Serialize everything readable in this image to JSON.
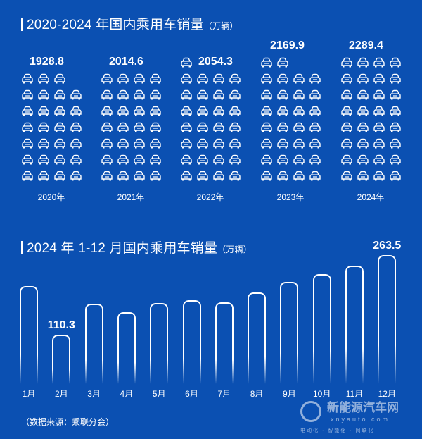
{
  "section1": {
    "title": "2020-2024 年国内乘用车销量",
    "unit": "（万辆）"
  },
  "section2": {
    "title": "2024 年 1-12 月国内乘用车销量",
    "unit": "（万辆）"
  },
  "source": "（数据来源：乘联分会）",
  "watermark": {
    "logo": "新能源汽车网",
    "url": "xnyauto.com",
    "slogan": "电动化 · 智能化 · 网联化"
  },
  "colors": {
    "background": "#0b50b2",
    "foreground": "#ffffff"
  },
  "chart_data": [
    {
      "type": "pictogram",
      "title": "2020-2024 年国内乘用车销量（万辆）",
      "categories": [
        "2020年",
        "2021年",
        "2022年",
        "2023年",
        "2024年"
      ],
      "values": [
        1928.8,
        2014.6,
        2054.3,
        2169.9,
        2289.4
      ],
      "labels": [
        "1928.8",
        "2014.6",
        "2054.3",
        "2169.9",
        "2289.4"
      ],
      "icon_counts": [
        27,
        28,
        29,
        30,
        32
      ],
      "icon": "car-icon"
    },
    {
      "type": "bar",
      "title": "2024 年 1-12 月国内乘用车销量（万辆）",
      "categories": [
        "1月",
        "2月",
        "3月",
        "4月",
        "5月",
        "6月",
        "7月",
        "8月",
        "9月",
        "10月",
        "11月",
        "12月"
      ],
      "values": [
        203,
        110.3,
        169,
        153,
        171,
        176,
        172,
        191,
        211,
        226,
        243,
        263.5
      ],
      "data_labels": {
        "1": "110.3",
        "11": "263.5"
      },
      "ylim": [
        0,
        270
      ]
    }
  ]
}
